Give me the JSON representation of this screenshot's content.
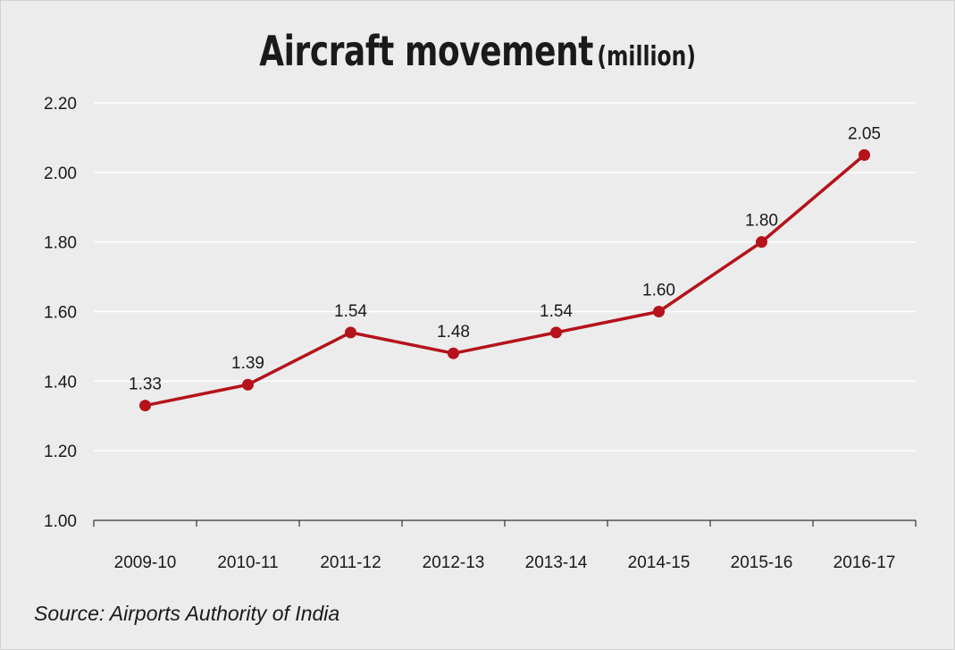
{
  "chart_data": {
    "type": "line",
    "title": "Aircraft movement",
    "title_unit": "(million)",
    "categories": [
      "2009-10",
      "2010-11",
      "2011-12",
      "2012-13",
      "2013-14",
      "2014-15",
      "2015-16",
      "2016-17"
    ],
    "values": [
      1.33,
      1.39,
      1.54,
      1.48,
      1.54,
      1.6,
      1.8,
      2.05
    ],
    "value_labels": [
      "1.33",
      "1.39",
      "1.54",
      "1.48",
      "1.54",
      "1.60",
      "1.80",
      "2.05"
    ],
    "ylim": [
      1.0,
      2.2
    ],
    "yticks": [
      "1.00",
      "1.20",
      "1.40",
      "1.60",
      "1.80",
      "2.00",
      "2.20"
    ],
    "ytick_values": [
      1.0,
      1.2,
      1.4,
      1.6,
      1.8,
      2.0,
      2.2
    ],
    "grid": true,
    "line_color": "#b5121b",
    "source": "Source: Airports Authority of India"
  }
}
